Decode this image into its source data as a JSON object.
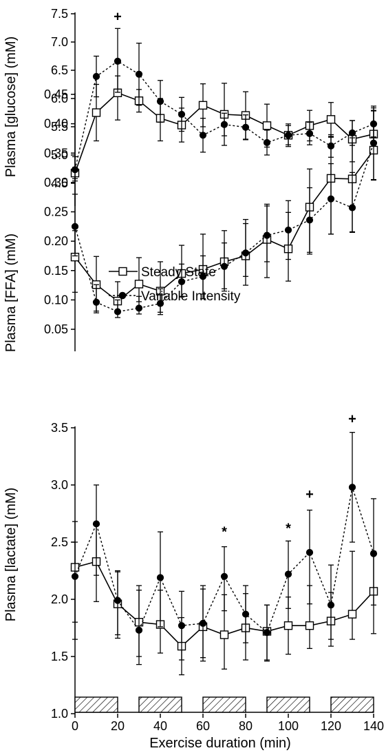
{
  "chart_data": [
    {
      "type": "line",
      "ylabel": "Plasma [glucose] (mM)",
      "xlabel": "",
      "ylim": [
        4.5,
        7.5
      ],
      "yticks": [
        "4.5",
        "5.0",
        "5.5",
        "6.0",
        "6.5",
        "7.0",
        "7.5"
      ],
      "x": [
        0,
        10,
        20,
        30,
        40,
        50,
        60,
        70,
        80,
        90,
        100,
        110,
        120,
        130,
        140
      ],
      "series": [
        {
          "name": "Steady State",
          "marker": "open-square",
          "values": [
            4.68,
            5.75,
            6.1,
            5.96,
            5.65,
            5.53,
            5.88,
            5.72,
            5.7,
            5.52,
            5.35,
            5.52,
            5.63,
            5.28,
            5.37
          ],
          "error_upper": [
            0.1,
            0.5,
            0.3,
            0.2,
            0.35,
            0.3,
            0.38,
            0.55,
            0.42,
            0.38,
            0.17,
            0.27,
            0.3,
            0.33,
            0.42
          ],
          "error_lower": [
            0.1,
            0.5,
            0.48,
            0.2,
            0.4,
            0.3,
            0.38,
            0.55,
            0.42,
            0.38,
            0.17,
            0.27,
            0.3,
            0.4,
            0.32
          ]
        },
        {
          "name": "Variable Intensity",
          "marker": "filled-circle",
          "values": [
            4.74,
            6.39,
            6.66,
            6.43,
            5.95,
            5.72,
            5.35,
            5.54,
            5.49,
            5.22,
            5.35,
            5.38,
            5.16,
            5.39,
            5.55
          ],
          "error_upper": [
            0.23,
            0.36,
            0.58,
            0.55,
            0.37,
            0.3,
            0.3,
            0.2,
            0.22,
            0.22,
            0.2,
            0.2,
            0.2,
            0.22,
            0.23
          ],
          "error_lower": [
            0.2,
            0.36,
            0.55,
            0.55,
            0.37,
            0.3,
            0.3,
            0.2,
            0.22,
            0.22,
            0.2,
            0.2,
            0.2,
            0.22,
            0.23
          ]
        }
      ],
      "annotations": [
        {
          "text": "+",
          "x": 20,
          "y": 7.37
        }
      ]
    },
    {
      "type": "line",
      "ylabel": "Plasma [FFA] (mM)",
      "xlabel": "",
      "ylim": [
        0.05,
        0.45
      ],
      "yticks": [
        "0.05",
        "0.10",
        "0.15",
        "0.20",
        "0.25",
        "0.30",
        "0.35",
        "0.40",
        "0.45"
      ],
      "x": [
        0,
        10,
        20,
        30,
        40,
        50,
        60,
        70,
        80,
        90,
        100,
        110,
        120,
        130,
        140
      ],
      "legend": {
        "position": "top-left",
        "entries": [
          "Steady State",
          "Variable Intensity"
        ]
      },
      "series": [
        {
          "name": "Steady State",
          "marker": "open-square",
          "values": [
            0.173,
            0.126,
            0.098,
            0.127,
            0.115,
            0.145,
            0.152,
            0.165,
            0.175,
            0.203,
            0.187,
            0.258,
            0.307,
            0.306,
            0.355
          ],
          "error_upper": [
            0.045,
            0.048,
            0.033,
            0.045,
            0.05,
            0.048,
            0.06,
            0.053,
            0.062,
            0.06,
            0.062,
            0.065,
            0.07,
            0.07,
            0.075
          ],
          "error_lower": [
            0.06,
            0.045,
            0.02,
            0.03,
            0.04,
            0.04,
            0.05,
            0.05,
            0.05,
            0.065,
            0.055,
            0.08,
            0.095,
            0.09,
            0.05
          ]
        },
        {
          "name": "Variable Intensity",
          "marker": "filled-circle",
          "values": [
            0.225,
            0.096,
            0.08,
            0.086,
            0.094,
            0.131,
            0.14,
            0.157,
            0.18,
            0.21,
            0.219,
            0.236,
            0.272,
            0.257,
            0.367
          ],
          "error_upper": [
            0.055,
            0.03,
            0.02,
            0.02,
            0.025,
            0.03,
            0.035,
            0.04,
            0.05,
            0.05,
            0.05,
            0.055,
            0.06,
            0.06,
            0.06
          ],
          "error_lower": [
            0.05,
            0.018,
            0.01,
            0.01,
            0.015,
            0.025,
            0.03,
            0.038,
            0.04,
            0.045,
            0.05,
            0.055,
            0.06,
            0.042,
            0.063
          ]
        }
      ]
    },
    {
      "type": "line",
      "ylabel": "Plasma [lactate] (mM)",
      "xlabel": "Exercise duration (min)",
      "ylim": [
        1.0,
        3.5
      ],
      "yticks": [
        "1.0",
        "1.5",
        "2.0",
        "2.5",
        "3.0",
        "3.5"
      ],
      "xlim": [
        0,
        140
      ],
      "xticks": [
        "0",
        "20",
        "40",
        "60",
        "80",
        "100",
        "120",
        "140"
      ],
      "x": [
        0,
        10,
        20,
        30,
        40,
        50,
        60,
        70,
        80,
        90,
        100,
        110,
        120,
        130,
        140
      ],
      "series": [
        {
          "name": "Steady State",
          "marker": "open-square",
          "values": [
            2.28,
            2.33,
            1.96,
            1.8,
            1.78,
            1.59,
            1.76,
            1.69,
            1.75,
            1.72,
            1.77,
            1.77,
            1.81,
            1.87,
            2.07
          ],
          "error_upper": [
            0.4,
            0.33,
            0.28,
            0.32,
            0.3,
            0.25,
            0.33,
            0.35,
            0.3,
            0.23,
            0.25,
            0.35,
            0.25,
            0.55,
            0.35
          ],
          "error_lower": [
            0.63,
            0.35,
            0.3,
            0.3,
            0.25,
            0.25,
            0.3,
            0.3,
            0.28,
            0.25,
            0.25,
            0.2,
            0.22,
            0.22,
            0.37
          ]
        },
        {
          "name": "Variable Intensity",
          "marker": "filled-circle",
          "values": [
            2.2,
            2.66,
            1.99,
            1.73,
            2.19,
            1.77,
            1.79,
            2.2,
            1.87,
            1.71,
            2.22,
            2.41,
            1.95,
            2.98,
            2.4
          ],
          "error_upper": [
            0.3,
            0.34,
            0.26,
            0.35,
            0.4,
            0.3,
            0.33,
            0.26,
            0.25,
            0.24,
            0.29,
            0.37,
            0.35,
            0.48,
            0.48
          ],
          "error_lower": [
            0.4,
            0.45,
            0.3,
            0.3,
            0.43,
            0.3,
            0.3,
            0.3,
            0.25,
            0.25,
            0.3,
            0.45,
            0.3,
            0.48,
            0.45
          ]
        }
      ],
      "annotations": [
        {
          "text": "*",
          "x": 70,
          "y": 2.55
        },
        {
          "text": "*",
          "x": 100,
          "y": 2.58
        },
        {
          "text": "+",
          "x": 110,
          "y": 2.88
        },
        {
          "text": "+",
          "x": 130,
          "y": 3.54
        }
      ],
      "exercise_intervals": [
        [
          0,
          20
        ],
        [
          30,
          50
        ],
        [
          60,
          80
        ],
        [
          90,
          110
        ],
        [
          120,
          140
        ]
      ]
    }
  ]
}
